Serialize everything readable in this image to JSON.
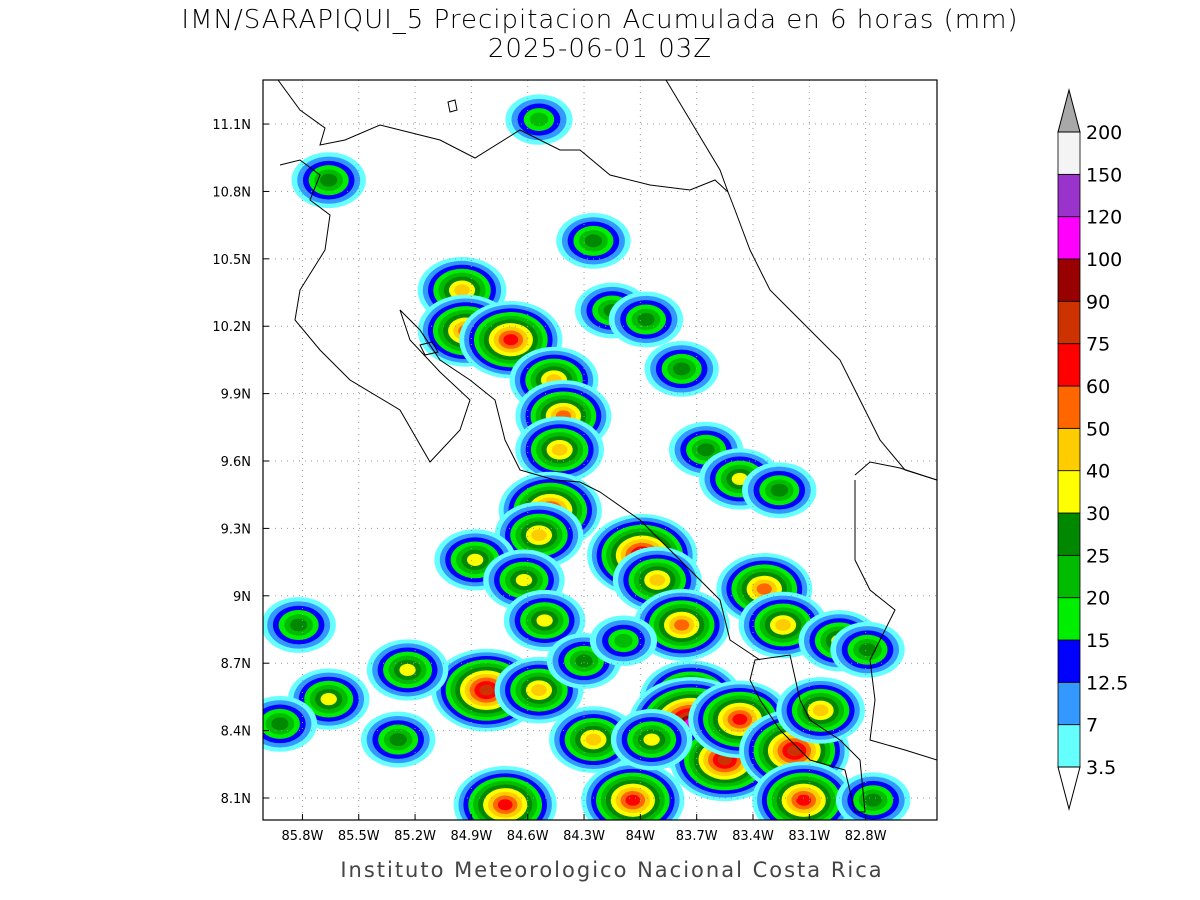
{
  "title": "IMN/SARAPIQUI_5 Precipitacion Acumulada en 6 horas (mm)",
  "subtitle": "2025-06-01 03Z",
  "footer": "Instituto Meteorologico Nacional Costa Rica",
  "map": {
    "lonlim": [
      -86.01,
      -82.42
    ],
    "latlim": [
      8.002,
      11.296
    ],
    "lon_ticks": [
      {
        "value": -85.8,
        "label": "85.8W"
      },
      {
        "value": -85.5,
        "label": "85.5W"
      },
      {
        "value": -85.2,
        "label": "85.2W"
      },
      {
        "value": -84.9,
        "label": "84.9W"
      },
      {
        "value": -84.6,
        "label": "84.6W"
      },
      {
        "value": -84.3,
        "label": "84.3W"
      },
      {
        "value": -84.0,
        "label": "84W"
      },
      {
        "value": -83.7,
        "label": "83.7W"
      },
      {
        "value": -83.4,
        "label": "83.4W"
      },
      {
        "value": -83.1,
        "label": "83.1W"
      },
      {
        "value": -82.8,
        "label": "82.8W"
      }
    ],
    "lat_ticks": [
      {
        "value": 8.1,
        "label": "8.1N"
      },
      {
        "value": 8.4,
        "label": "8.4N"
      },
      {
        "value": 8.7,
        "label": "8.7N"
      },
      {
        "value": 9.0,
        "label": "9N"
      },
      {
        "value": 9.3,
        "label": "9.3N"
      },
      {
        "value": 9.6,
        "label": "9.6N"
      },
      {
        "value": 9.9,
        "label": "9.9N"
      },
      {
        "value": 10.2,
        "label": "10.2N"
      },
      {
        "value": 10.5,
        "label": "10.5N"
      },
      {
        "value": 10.8,
        "label": "10.8N"
      },
      {
        "value": 11.1,
        "label": "11.1N"
      }
    ],
    "grid": true
  },
  "colorbar": {
    "levels": [
      3.5,
      7,
      12.5,
      15,
      20,
      25,
      30,
      40,
      50,
      60,
      75,
      90,
      100,
      120,
      150,
      200
    ],
    "colors": [
      "#66ffff",
      "#3399ff",
      "#0000ff",
      "#00ee00",
      "#00bb00",
      "#008800",
      "#ffff00",
      "#ffcc00",
      "#ff6600",
      "#ff0000",
      "#cc3300",
      "#990000",
      "#ff00ff",
      "#9933cc",
      "#f4f4f4"
    ],
    "over_color": "#a8a8a8",
    "under_color": "#ffffff"
  },
  "precip_cells": [
    {
      "lon": -84.95,
      "lat": 10.36,
      "mm": 40
    },
    {
      "lon": -84.93,
      "lat": 10.18,
      "mm": 50
    },
    {
      "lon": -84.69,
      "lat": 10.14,
      "mm": 60
    },
    {
      "lon": -84.46,
      "lat": 9.96,
      "mm": 40
    },
    {
      "lon": -84.41,
      "lat": 9.8,
      "mm": 50
    },
    {
      "lon": -84.43,
      "lat": 9.65,
      "mm": 40
    },
    {
      "lon": -84.48,
      "lat": 9.38,
      "mm": 60
    },
    {
      "lon": -84.54,
      "lat": 9.27,
      "mm": 40
    },
    {
      "lon": -83.99,
      "lat": 9.18,
      "mm": 75
    },
    {
      "lon": -83.91,
      "lat": 9.07,
      "mm": 40
    },
    {
      "lon": -83.78,
      "lat": 8.87,
      "mm": 50
    },
    {
      "lon": -83.73,
      "lat": 8.54,
      "mm": 60
    },
    {
      "lon": -83.73,
      "lat": 8.43,
      "mm": 100
    },
    {
      "lon": -83.55,
      "lat": 8.27,
      "mm": 75
    },
    {
      "lon": -83.47,
      "lat": 8.45,
      "mm": 60
    },
    {
      "lon": -83.18,
      "lat": 8.31,
      "mm": 75
    },
    {
      "lon": -83.13,
      "lat": 8.09,
      "mm": 60
    },
    {
      "lon": -83.34,
      "lat": 9.03,
      "mm": 50
    },
    {
      "lon": -83.24,
      "lat": 8.87,
      "mm": 40
    },
    {
      "lon": -84.82,
      "lat": 8.58,
      "mm": 75
    },
    {
      "lon": -84.72,
      "lat": 8.07,
      "mm": 60
    },
    {
      "lon": -84.04,
      "lat": 8.09,
      "mm": 60
    },
    {
      "lon": -84.54,
      "lat": 8.58,
      "mm": 40
    },
    {
      "lon": -85.24,
      "lat": 8.67,
      "mm": 30
    },
    {
      "lon": -85.66,
      "lat": 8.54,
      "mm": 30
    },
    {
      "lon": -85.92,
      "lat": 8.43,
      "mm": 25
    },
    {
      "lon": -84.88,
      "lat": 9.16,
      "mm": 30
    },
    {
      "lon": -84.62,
      "lat": 9.07,
      "mm": 30
    },
    {
      "lon": -84.51,
      "lat": 8.89,
      "mm": 30
    },
    {
      "lon": -85.82,
      "lat": 8.87,
      "mm": 25
    },
    {
      "lon": -85.66,
      "lat": 10.85,
      "mm": 25
    },
    {
      "lon": -84.25,
      "lat": 10.58,
      "mm": 25
    },
    {
      "lon": -84.15,
      "lat": 10.27,
      "mm": 25
    },
    {
      "lon": -83.97,
      "lat": 10.23,
      "mm": 25
    },
    {
      "lon": -83.78,
      "lat": 10.01,
      "mm": 25
    },
    {
      "lon": -83.65,
      "lat": 9.65,
      "mm": 25
    },
    {
      "lon": -83.47,
      "lat": 9.52,
      "mm": 30
    },
    {
      "lon": -83.26,
      "lat": 9.47,
      "mm": 25
    },
    {
      "lon": -82.94,
      "lat": 8.8,
      "mm": 30
    },
    {
      "lon": -82.79,
      "lat": 8.76,
      "mm": 25
    },
    {
      "lon": -84.54,
      "lat": 11.12,
      "mm": 20
    },
    {
      "lon": -84.3,
      "lat": 8.71,
      "mm": 25
    },
    {
      "lon": -84.09,
      "lat": 8.8,
      "mm": 20
    },
    {
      "lon": -83.04,
      "lat": 8.49,
      "mm": 40
    },
    {
      "lon": -82.76,
      "lat": 8.09,
      "mm": 25
    },
    {
      "lon": -85.29,
      "lat": 8.36,
      "mm": 25
    },
    {
      "lon": -84.25,
      "lat": 8.36,
      "mm": 40
    },
    {
      "lon": -83.94,
      "lat": 8.36,
      "mm": 30
    }
  ]
}
